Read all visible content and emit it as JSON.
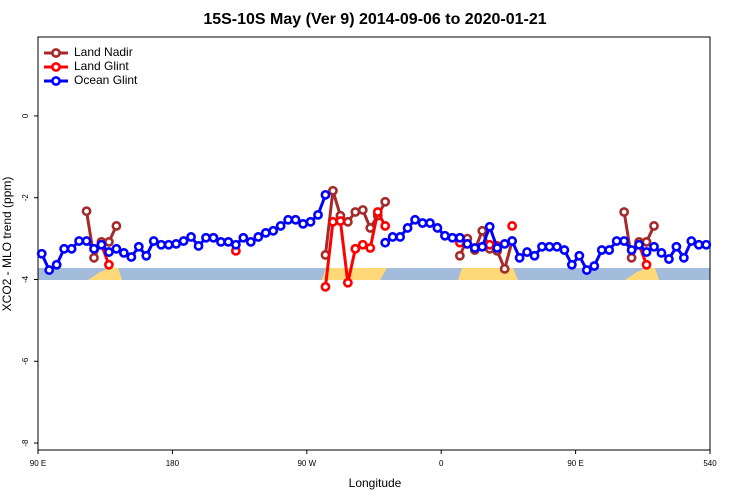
{
  "chart_data": {
    "type": "line",
    "title": "15S-10S May (Ver 9)   2014-09-06 to 2020-01-21",
    "x_label": "Longitude",
    "y_label": "XCO2 - MLO trend (ppm)",
    "xlim": [
      90,
      540
    ],
    "ylim": [
      -8.17,
      1.93
    ],
    "xticks": [
      {
        "value": 90,
        "label": "90 E"
      },
      180,
      {
        "value": 270,
        "label": "90 W"
      },
      {
        "value": 360,
        "label": "0"
      },
      {
        "value": 450,
        "label": "90 E"
      },
      540
    ],
    "yticks": [
      -8,
      -6,
      -4,
      -2,
      0
    ],
    "legend": "top-left",
    "x": [
      92.5,
      97.5,
      102.5,
      107.5,
      112.5,
      117.5,
      122.5,
      127.5,
      132.5,
      137.5,
      142.5,
      147.5,
      152.5,
      157.5,
      162.5,
      167.5,
      172.5,
      177.5,
      182.5,
      187.5,
      192.5,
      197.5,
      202.5,
      207.5,
      212.5,
      217.5,
      222.5,
      227.5,
      232.5,
      237.5,
      242.5,
      247.5,
      252.5,
      257.5,
      262.5,
      267.5,
      272.5,
      277.5,
      282.5,
      287.5,
      292.5,
      297.5,
      302.5,
      307.5,
      312.5,
      317.5,
      322.5,
      327.5,
      332.5,
      337.5,
      342.5,
      347.5,
      352.5,
      357.5,
      362.5,
      367.5,
      372.5,
      377.5,
      382.5,
      387.5,
      392.5,
      397.5,
      402.5,
      407.5,
      412.5,
      417.5,
      422.5,
      427.5,
      432.5,
      437.5,
      442.5,
      447.5,
      452.5,
      457.5,
      462.5,
      467.5,
      472.5,
      477.5,
      482.5,
      487.5,
      492.5,
      497.5,
      502.5,
      507.5,
      512.5,
      517.5,
      522.5,
      527.5,
      532.5,
      537.5
    ],
    "series": [
      {
        "name": "Land Nadir",
        "color": "#a52a2a",
        "values": [
          null,
          null,
          null,
          null,
          null,
          null,
          -2.33,
          -3.47,
          -3.08,
          -3.08,
          -2.69,
          null,
          null,
          null,
          null,
          null,
          null,
          null,
          null,
          null,
          null,
          null,
          null,
          null,
          null,
          null,
          null,
          null,
          null,
          null,
          null,
          null,
          null,
          null,
          null,
          null,
          null,
          null,
          -3.4,
          -1.83,
          -2.44,
          -2.59,
          -2.35,
          -2.3,
          -2.74,
          -2.44,
          -2.1,
          null,
          null,
          null,
          null,
          null,
          null,
          null,
          null,
          null,
          -3.42,
          -3.0,
          -3.28,
          -2.81,
          -3.25,
          -3.3,
          -3.74,
          -3.06,
          null,
          null,
          null,
          null,
          null,
          null,
          null,
          null,
          null,
          null,
          null,
          null,
          null,
          null,
          -2.35,
          -3.47,
          -3.08,
          -3.08,
          -2.69,
          null,
          null,
          null,
          null,
          null,
          null,
          null
        ]
      },
      {
        "name": "Land Glint",
        "color": "#ff0000",
        "values": [
          null,
          null,
          null,
          null,
          null,
          null,
          null,
          null,
          -3.15,
          -3.64,
          null,
          null,
          null,
          null,
          null,
          null,
          null,
          null,
          null,
          null,
          null,
          null,
          null,
          null,
          null,
          null,
          -3.3,
          null,
          null,
          null,
          null,
          null,
          null,
          null,
          null,
          null,
          null,
          null,
          -4.18,
          -2.59,
          -2.57,
          -4.08,
          -3.25,
          -3.15,
          -3.23,
          -2.35,
          -2.69,
          null,
          null,
          null,
          null,
          null,
          null,
          null,
          null,
          null,
          -3.1,
          -3.13,
          -3.23,
          null,
          -3.15,
          -3.18,
          null,
          -2.69,
          null,
          null,
          null,
          null,
          null,
          null,
          null,
          null,
          null,
          null,
          null,
          null,
          null,
          null,
          null,
          null,
          -3.15,
          -3.64,
          null,
          null,
          null,
          null,
          null,
          null,
          null,
          null
        ]
      },
      {
        "name": "Ocean Glint",
        "color": "#0000ff",
        "values": [
          -3.37,
          -3.77,
          -3.64,
          -3.25,
          -3.25,
          -3.06,
          -3.06,
          -3.25,
          -3.15,
          -3.33,
          -3.25,
          -3.35,
          -3.45,
          -3.2,
          -3.42,
          -3.06,
          -3.15,
          -3.15,
          -3.13,
          -3.06,
          -2.96,
          -3.18,
          -2.98,
          -2.98,
          -3.08,
          -3.08,
          -3.15,
          -2.98,
          -3.08,
          -2.96,
          -2.86,
          -2.81,
          -2.69,
          -2.54,
          -2.54,
          -2.64,
          -2.59,
          -2.42,
          -1.93,
          null,
          null,
          null,
          null,
          null,
          null,
          null,
          -3.1,
          -2.96,
          -2.96,
          -2.74,
          -2.54,
          -2.62,
          -2.62,
          -2.74,
          -2.93,
          -2.98,
          -2.98,
          -3.13,
          -3.23,
          -3.2,
          -2.71,
          -3.23,
          -3.13,
          -3.06,
          -3.47,
          -3.33,
          -3.42,
          -3.2,
          -3.2,
          -3.2,
          -3.28,
          -3.64,
          -3.42,
          -3.77,
          -3.67,
          -3.28,
          -3.28,
          -3.06,
          -3.06,
          -3.28,
          -3.15,
          -3.33,
          -3.2,
          -3.35,
          -3.5,
          -3.2,
          -3.47,
          -3.06,
          -3.15,
          -3.15
        ]
      }
    ]
  }
}
